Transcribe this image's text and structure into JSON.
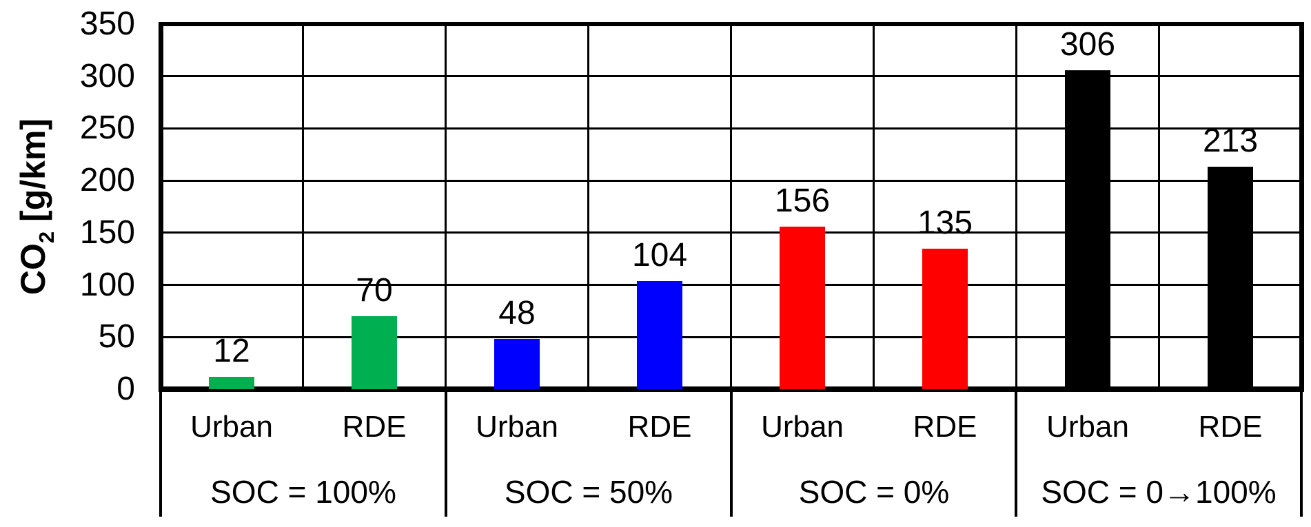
{
  "chart_data": {
    "type": "bar",
    "title": "",
    "ylabel_prefix": "CO",
    "ylabel_sub": "2",
    "ylabel_suffix": " [g/km]",
    "ylabel_text": "CO2 [g/km]",
    "ylim": [
      0,
      350
    ],
    "ytick_step": 50,
    "yticks": [
      350,
      300,
      250,
      200,
      150,
      100,
      50,
      0
    ],
    "grid": true,
    "legend": "none",
    "categories_per_group": [
      "Urban",
      "RDE"
    ],
    "groups": [
      {
        "label": "SOC = 100%",
        "color": "#00B050",
        "bars": [
          {
            "category": "Urban",
            "value": 12
          },
          {
            "category": "RDE",
            "value": 70
          }
        ]
      },
      {
        "label": "SOC = 50%",
        "color": "#0000FF",
        "bars": [
          {
            "category": "Urban",
            "value": 48
          },
          {
            "category": "RDE",
            "value": 104
          }
        ]
      },
      {
        "label": "SOC = 0%",
        "color": "#FF0000",
        "bars": [
          {
            "category": "Urban",
            "value": 156
          },
          {
            "category": "RDE",
            "value": 135
          }
        ]
      },
      {
        "label": "SOC = 0→100%",
        "color": "#000000",
        "bars": [
          {
            "category": "Urban",
            "value": 306
          },
          {
            "category": "RDE",
            "value": 213
          }
        ]
      }
    ],
    "colors": {
      "axis": "#000000",
      "grid": "#000000",
      "text": "#000000",
      "background": "#FFFFFF"
    }
  }
}
